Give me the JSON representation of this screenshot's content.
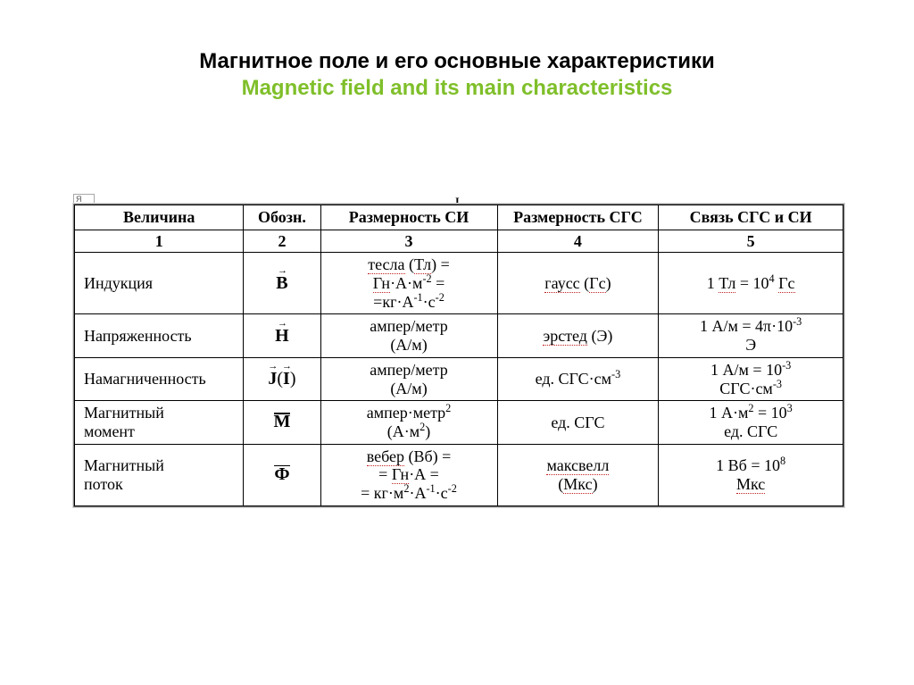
{
  "title": {
    "ru": "Магнитное поле и его основные характеристики",
    "en": "Magnetic field and its main characteristics",
    "ru_color": "#000000",
    "en_color": "#7fbf2a",
    "fontsize": 24
  },
  "ruler": {
    "tick_label": "Я",
    "top_marker": "I"
  },
  "table": {
    "type": "table",
    "border_color": "#000000",
    "background_color": "#ffffff",
    "header_fontsize": 18,
    "cell_fontsize": 18,
    "col_widths_pct": [
      22,
      10,
      23,
      21,
      24
    ],
    "align": [
      "left",
      "center",
      "center",
      "center",
      "center"
    ],
    "columns": [
      "Величина",
      "Обозн.",
      "Размерность СИ",
      "Размерность СГС",
      "Связь СГС и СИ"
    ],
    "number_row": [
      "1",
      "2",
      "3",
      "4",
      "5"
    ],
    "rows": [
      {
        "quantity": "Индукция",
        "symbol_html": "<span class='vec arrow'><b>B</b></span>",
        "si_html": "<span class='redund'>тесла</span> (<span class='redund'>Тл</span>) =<br><span class='redund'>Гн</span>·А·м<sup>-2</sup> =<br>=кг·А<sup>-1</sup>·с<sup>-2</sup>",
        "cgs_html": "<span class='redund'>гаусс</span> (<span class='redund'>Гс</span>)",
        "rel_html": "1 <span class='redund'>Тл</span> = 10<sup>4</sup> <span class='redund'>Гс</span>"
      },
      {
        "quantity": "Напряженность",
        "symbol_html": "<span class='vec arrow'><b>H</b></span>",
        "si_html": "ампер/метр<br>(А/м)",
        "cgs_html": "<span class='redund'>эрстед</span> (Э)",
        "rel_html": "<span class='nowrap'>1 А/м = 4π·10<sup>-3</sup></span><br>Э"
      },
      {
        "quantity": "Намагниченность",
        "symbol_html": "<span class='vec arrow'><b>J</b></span><span style='font-weight:normal'>(</span><span class='vec arrow'><b>I</b></span><span style='font-weight:normal'>)</span>",
        "si_html": "ампер/метр<br>(А/м)",
        "cgs_html": "ед. СГС·см<sup>-3</sup>",
        "rel_html": "1 А/м = 10<sup>-3</sup><br>СГС·см<sup>-3</sup>"
      },
      {
        "quantity_html": "Магнитный<br>момент",
        "symbol_html": "<span class='vec bar'><b>M</b></span>",
        "si_html": "ампер·метр<sup>2</sup><br>(А·м<sup>2</sup>)",
        "cgs_html": "ед. СГС",
        "rel_html": "<span class='nowrap'>1 А·м<sup>2</sup> = 10<sup>3</sup></span><br>ед. СГС"
      },
      {
        "quantity_html": "Магнитный<br>поток",
        "symbol_html": "<span class='vec bar'><b>Ф</b></span>",
        "si_html": "<span class='redund'>вебер</span> (Вб) =<br>= <span class='redund'>Гн</span>·А =<br>= кг·м<sup>2</sup>·А<sup>-1</sup>·с<sup>-2</sup>",
        "cgs_html": "<span class='redund'>максвелл</span><br>(<span class='redund'>Мкс</span>)",
        "rel_html": "1 Вб = 10<sup>8</sup><br><span class='redund'>Мкс</span>"
      }
    ]
  }
}
